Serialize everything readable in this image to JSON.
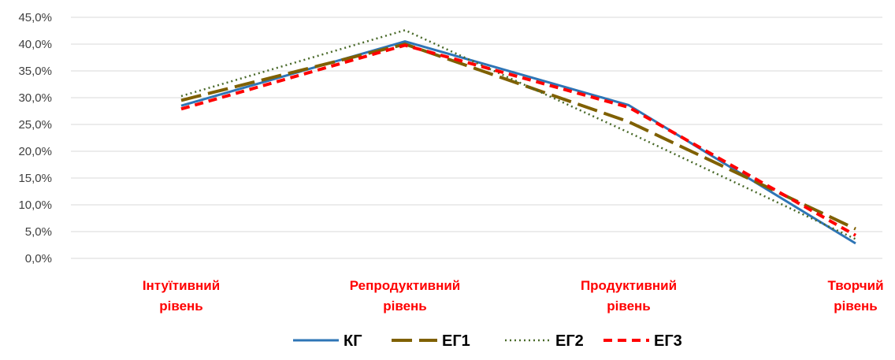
{
  "chart_data": {
    "type": "line",
    "categories": [
      [
        "Інтуїтивний",
        "рівень"
      ],
      [
        "Репродуктивний",
        "рівень"
      ],
      [
        "Продуктивний",
        "рівень"
      ],
      [
        "Творчий",
        "рівень"
      ]
    ],
    "y_tick_labels": [
      "0,0%",
      "5,0%",
      "10,0%",
      "15,0%",
      "20,0%",
      "25,0%",
      "30,0%",
      "35,0%",
      "40,0%",
      "45,0%"
    ],
    "ylim": [
      0,
      45
    ],
    "y_unit": "%",
    "grid": "horizontal",
    "legend_position": "bottom",
    "category_label_color": "#ff0000",
    "series": [
      {
        "name": "КГ",
        "values": [
          28.5,
          40.5,
          28.6,
          2.8
        ],
        "color": "#2e75b6",
        "style": "solid"
      },
      {
        "name": "ЕГ1",
        "values": [
          29.5,
          40.0,
          25.5,
          5.5
        ],
        "color": "#7f6000",
        "style": "long-dash"
      },
      {
        "name": "ЕГ2",
        "values": [
          30.3,
          42.6,
          23.5,
          3.6
        ],
        "color": "#4a6a2a",
        "style": "dotted"
      },
      {
        "name": "ЕГ3",
        "values": [
          27.9,
          39.8,
          28.2,
          4.3
        ],
        "color": "#ff0000",
        "style": "dash"
      }
    ]
  }
}
